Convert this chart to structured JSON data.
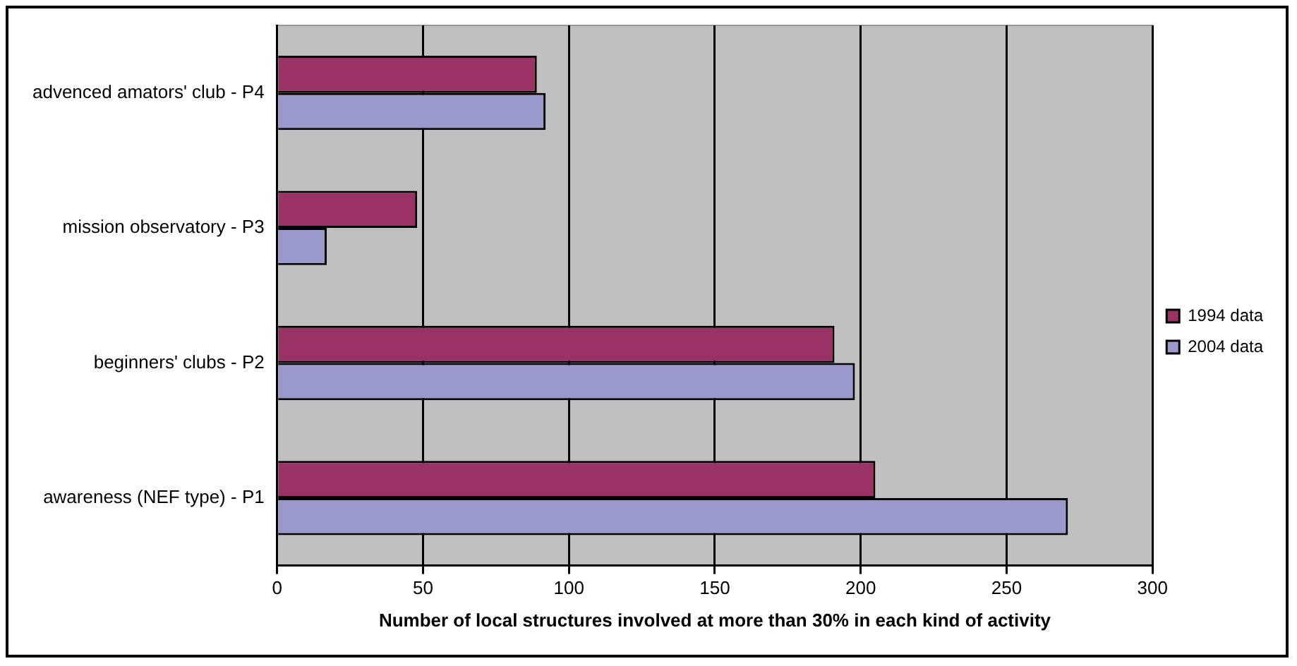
{
  "chart_data": {
    "type": "bar",
    "orientation": "horizontal",
    "xlabel": "Number of local structures involved at more than 30% in each kind of activity",
    "categories": [
      "advenced amators' club - P4",
      "mission observatory - P3",
      "beginners' clubs - P2",
      "awareness (NEF type) - P1"
    ],
    "series": [
      {
        "name": "1994 data",
        "color": "#993366",
        "values": [
          89,
          48,
          191,
          205
        ]
      },
      {
        "name": "2004 data",
        "color": "#9999cc",
        "values": [
          92,
          17,
          198,
          271
        ]
      }
    ],
    "xlim": [
      0,
      300
    ],
    "xticks": [
      0,
      50,
      100,
      150,
      200,
      250,
      300
    ],
    "grid": "x",
    "legend": "right"
  }
}
